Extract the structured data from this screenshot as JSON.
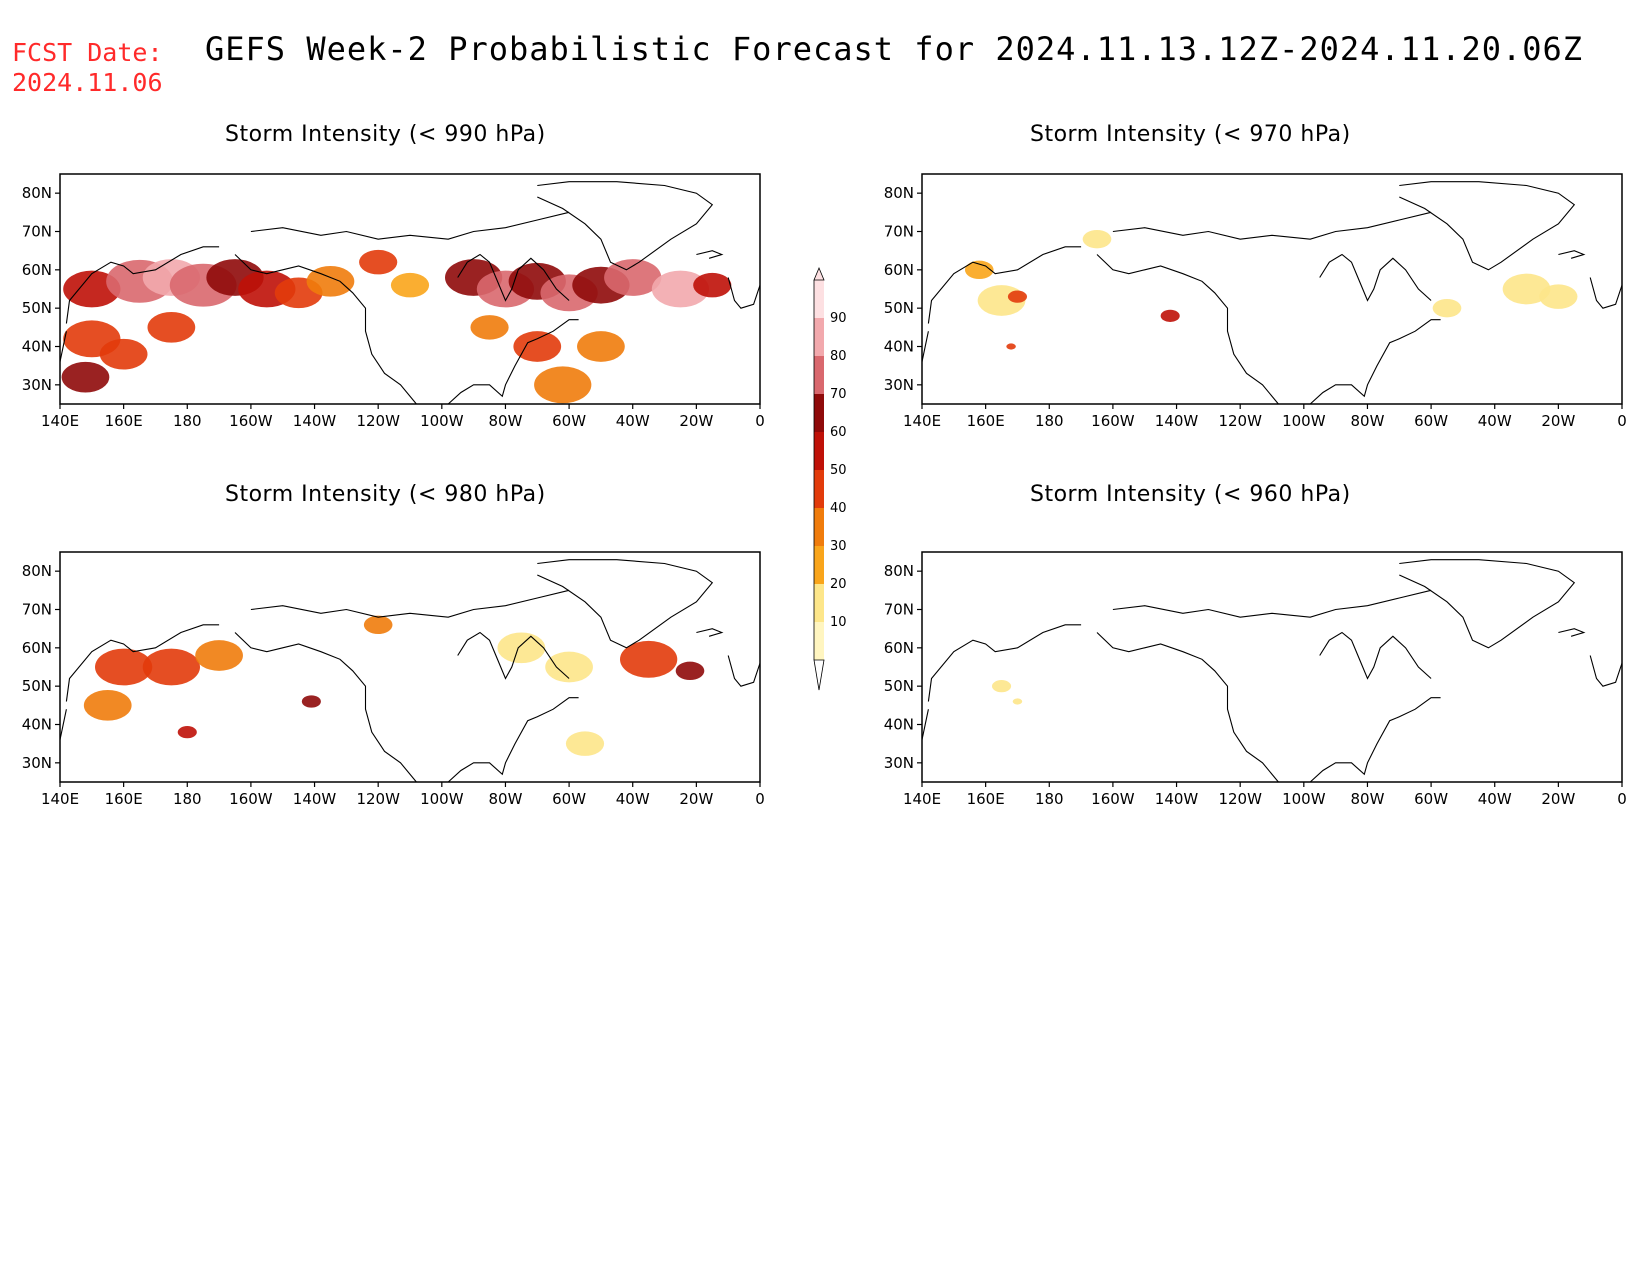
{
  "header": {
    "fcst_label": "FCST Date:",
    "fcst_date": "2024.11.06",
    "title": "GEFS Week-2 Probabilistic Forecast for 2024.11.13.12Z-2024.11.20.06Z",
    "fcst_color": "#ff2a2a"
  },
  "panels": [
    {
      "id": "p990",
      "title": "Storm Intensity (< 990 hPa)"
    },
    {
      "id": "p970",
      "title": "Storm Intensity (< 970 hPa)"
    },
    {
      "id": "p980",
      "title": "Storm Intensity (< 980 hPa)"
    },
    {
      "id": "p960",
      "title": "Storm Intensity (< 960 hPa)"
    }
  ],
  "axes": {
    "lon_labels": [
      "140E",
      "160E",
      "180",
      "160W",
      "140W",
      "120W",
      "100W",
      "80W",
      "60W",
      "40W",
      "20W",
      "0"
    ],
    "lat_labels": [
      "80N",
      "70N",
      "60N",
      "50N",
      "40N",
      "30N"
    ]
  },
  "colorbar": {
    "labels": [
      "10",
      "20",
      "30",
      "40",
      "50",
      "60",
      "70",
      "80",
      "90"
    ],
    "colors": [
      "#fff5c0",
      "#fde68a",
      "#f9a51b",
      "#f07c0c",
      "#e23b0b",
      "#bf1108",
      "#8f0a0a",
      "#d9686e",
      "#f2a9ad",
      "#fde0e2"
    ]
  },
  "map_data": {
    "p990": [
      {
        "lon": 150,
        "lat": 55,
        "r": 6,
        "level": 5
      },
      {
        "lon": 165,
        "lat": 57,
        "r": 7,
        "level": 7
      },
      {
        "lon": 175,
        "lat": 58,
        "r": 6,
        "level": 8
      },
      {
        "lon": 185,
        "lat": 56,
        "r": 7,
        "level": 7
      },
      {
        "lon": 195,
        "lat": 58,
        "r": 6,
        "level": 6
      },
      {
        "lon": 205,
        "lat": 55,
        "r": 6,
        "level": 5
      },
      {
        "lon": 215,
        "lat": 54,
        "r": 5,
        "level": 4
      },
      {
        "lon": 225,
        "lat": 57,
        "r": 5,
        "level": 3
      },
      {
        "lon": 240,
        "lat": 62,
        "r": 4,
        "level": 4
      },
      {
        "lon": 250,
        "lat": 56,
        "r": 4,
        "level": 2
      },
      {
        "lon": 270,
        "lat": 58,
        "r": 6,
        "level": 6
      },
      {
        "lon": 280,
        "lat": 55,
        "r": 6,
        "level": 7
      },
      {
        "lon": 290,
        "lat": 57,
        "r": 6,
        "level": 6
      },
      {
        "lon": 300,
        "lat": 54,
        "r": 6,
        "level": 7
      },
      {
        "lon": 310,
        "lat": 56,
        "r": 6,
        "level": 6
      },
      {
        "lon": 320,
        "lat": 58,
        "r": 6,
        "level": 7
      },
      {
        "lon": 335,
        "lat": 55,
        "r": 6,
        "level": 8
      },
      {
        "lon": 345,
        "lat": 56,
        "r": 4,
        "level": 5
      },
      {
        "lon": 150,
        "lat": 42,
        "r": 6,
        "level": 4
      },
      {
        "lon": 160,
        "lat": 38,
        "r": 5,
        "level": 4
      },
      {
        "lon": 148,
        "lat": 32,
        "r": 5,
        "level": 6
      },
      {
        "lon": 175,
        "lat": 45,
        "r": 5,
        "level": 4
      },
      {
        "lon": 290,
        "lat": 40,
        "r": 5,
        "level": 4
      },
      {
        "lon": 298,
        "lat": 30,
        "r": 6,
        "level": 3
      },
      {
        "lon": 310,
        "lat": 40,
        "r": 5,
        "level": 3
      },
      {
        "lon": 275,
        "lat": 45,
        "r": 4,
        "level": 3
      }
    ],
    "p970": [
      {
        "lon": 165,
        "lat": 52,
        "r": 5,
        "level": 1
      },
      {
        "lon": 158,
        "lat": 60,
        "r": 3,
        "level": 2
      },
      {
        "lon": 170,
        "lat": 53,
        "r": 2,
        "level": 4
      },
      {
        "lon": 218,
        "lat": 48,
        "r": 2,
        "level": 5
      },
      {
        "lon": 195,
        "lat": 68,
        "r": 3,
        "level": 1
      },
      {
        "lon": 330,
        "lat": 55,
        "r": 5,
        "level": 1
      },
      {
        "lon": 340,
        "lat": 53,
        "r": 4,
        "level": 1
      },
      {
        "lon": 168,
        "lat": 40,
        "r": 1,
        "level": 4
      },
      {
        "lon": 305,
        "lat": 50,
        "r": 3,
        "level": 1
      }
    ],
    "p980": [
      {
        "lon": 160,
        "lat": 55,
        "r": 6,
        "level": 4
      },
      {
        "lon": 175,
        "lat": 55,
        "r": 6,
        "level": 4
      },
      {
        "lon": 190,
        "lat": 58,
        "r": 5,
        "level": 3
      },
      {
        "lon": 155,
        "lat": 45,
        "r": 5,
        "level": 3
      },
      {
        "lon": 180,
        "lat": 38,
        "r": 2,
        "level": 5
      },
      {
        "lon": 219,
        "lat": 46,
        "r": 2,
        "level": 6
      },
      {
        "lon": 325,
        "lat": 57,
        "r": 6,
        "level": 4
      },
      {
        "lon": 338,
        "lat": 54,
        "r": 3,
        "level": 6
      },
      {
        "lon": 300,
        "lat": 55,
        "r": 5,
        "level": 1
      },
      {
        "lon": 285,
        "lat": 60,
        "r": 5,
        "level": 1
      },
      {
        "lon": 305,
        "lat": 35,
        "r": 4,
        "level": 1
      },
      {
        "lon": 240,
        "lat": 66,
        "r": 3,
        "level": 3
      }
    ],
    "p960": [
      {
        "lon": 165,
        "lat": 50,
        "r": 2,
        "level": 1
      },
      {
        "lon": 170,
        "lat": 46,
        "r": 1,
        "level": 1
      }
    ]
  }
}
